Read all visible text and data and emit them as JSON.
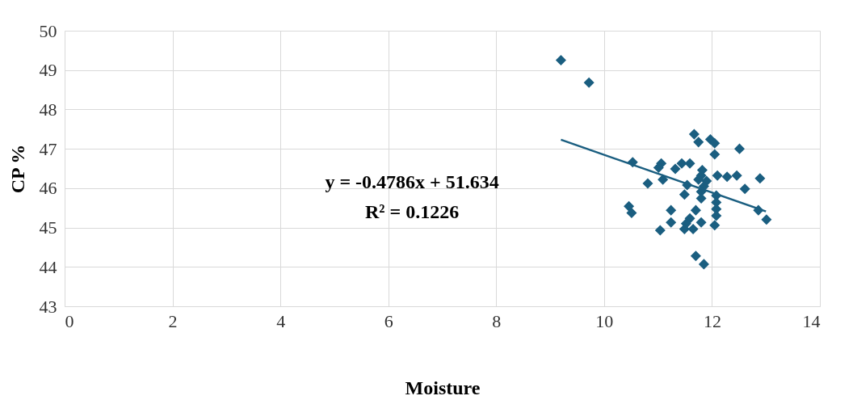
{
  "chart_data": {
    "type": "scatter",
    "xlabel": "Moisture",
    "ylabel": "CP %",
    "xlim": [
      0,
      14
    ],
    "xticks": [
      0,
      2,
      4,
      6,
      8,
      10,
      12,
      14
    ],
    "ylim": [
      43,
      50
    ],
    "yticks": [
      43,
      44,
      45,
      46,
      47,
      48,
      49,
      50
    ],
    "grid": true,
    "annotations": [
      "y = -0.4786x + 51.634",
      "R² = 0.1226"
    ],
    "series": [
      {
        "color": "#1a5e80",
        "marker": "diamond",
        "x": [
          9.2,
          9.72,
          11.67,
          11.75,
          11.97,
          12.05,
          12.51,
          12.05,
          10.53,
          11.06,
          11.01,
          11.32,
          11.44,
          11.59,
          11.82,
          11.8,
          12.1,
          12.28,
          12.46,
          12.89,
          10.81,
          11.09,
          11.75,
          11.9,
          11.54,
          11.85,
          12.61,
          11.49,
          11.8,
          11.8,
          12.08,
          12.08,
          12.08,
          12.08,
          12.05,
          12.86,
          13.01,
          10.46,
          10.51,
          11.24,
          11.24,
          11.04,
          11.7,
          11.59,
          11.52,
          11.8,
          11.49,
          11.65,
          11.7,
          11.85
        ],
        "values": [
          49.25,
          48.68,
          47.37,
          47.17,
          47.24,
          47.14,
          47.0,
          46.86,
          46.66,
          46.63,
          46.52,
          46.49,
          46.63,
          46.63,
          46.46,
          46.32,
          46.32,
          46.29,
          46.32,
          46.25,
          46.12,
          46.22,
          46.22,
          46.18,
          46.08,
          46.05,
          45.98,
          45.84,
          45.91,
          45.74,
          45.81,
          45.64,
          45.47,
          45.3,
          45.06,
          45.44,
          45.2,
          45.54,
          45.37,
          45.44,
          45.13,
          44.93,
          45.44,
          45.23,
          45.1,
          45.13,
          44.96,
          44.96,
          44.28,
          44.07
        ]
      },
      {
        "type": "line",
        "marker": "none",
        "color": "#1a5e80",
        "x": [
          9.2,
          13.0
        ],
        "values": [
          47.23,
          45.41
        ]
      }
    ]
  }
}
